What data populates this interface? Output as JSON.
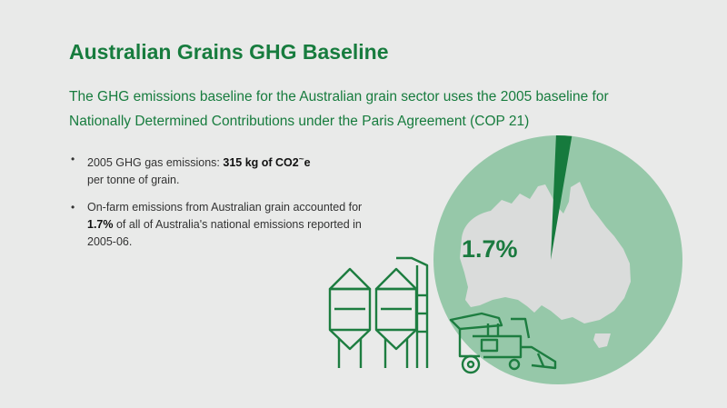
{
  "header": {
    "title": "Australian Grains GHG Baseline",
    "subtitle": "The GHG emissions baseline for the Australian grain sector uses the 2005 baseline for Nationally Determined Contributions under the Paris Agreement (COP 21)"
  },
  "bullets": [
    {
      "marker": "•",
      "pre": "2005 GHG gas emissions: ",
      "bold": "315 kg of CO2",
      "sup": "~",
      "bold_after": "e",
      "post": "per tonne of grain."
    },
    {
      "marker": "•",
      "pre": "On-farm emissions from Australian grain accounted for ",
      "bold": "1.7%",
      "post": " of all of Australia's national emissions reported in 2005-06."
    }
  ],
  "graphic": {
    "share_label": "1.7%",
    "share_fraction": 0.017,
    "icons": [
      "pie-chart",
      "australia-map",
      "grain-silo-icon",
      "combine-harvester-icon"
    ],
    "colors": {
      "circle": "#96c8a9",
      "slice": "#167a3d",
      "map": "#dadcdb",
      "line": "#1d7d40",
      "text": "#177c3e"
    }
  }
}
